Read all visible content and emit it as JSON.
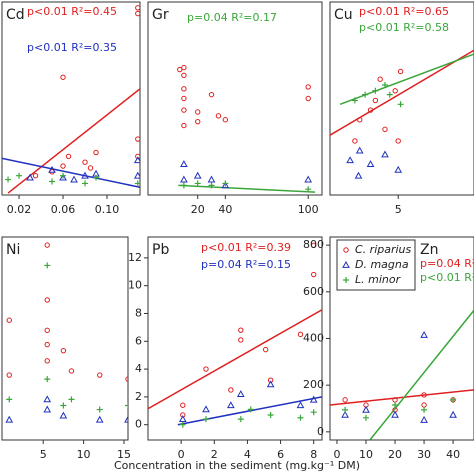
{
  "chart_data": [
    {
      "type": "scatter",
      "title": "Cd",
      "xlim": [
        0.0045,
        0.13
      ],
      "ylim": [
        0,
        1
      ],
      "xticks": [
        0.02,
        0.06,
        {
          "value": 0.1,
          "label": "0.10"
        }
      ],
      "series": [
        {
          "color": "#e02020",
          "marker": "circle",
          "x": [
            0.06,
            0.128,
            0.128,
            0.05,
            0.06,
            0.065,
            0.08,
            0.085,
            0.09,
            0.128,
            0.128,
            0.035
          ],
          "values": [
            0.61,
            0.97,
            0.94,
            0.12,
            0.15,
            0.2,
            0.17,
            0.14,
            0.22,
            0.29,
            0.2,
            0.1
          ]
        },
        {
          "color": "#2030c0",
          "marker": "triangle",
          "x": [
            0.05,
            0.06,
            0.08,
            0.09,
            0.128,
            0.128,
            0.03,
            0.07
          ],
          "values": [
            0.13,
            0.09,
            0.1,
            0.11,
            0.18,
            0.1,
            0.09,
            0.08
          ]
        },
        {
          "color": "#3aa63a",
          "marker": "plus",
          "x": [
            0.01,
            0.05,
            0.06,
            0.08,
            0.09,
            0.128,
            0.02
          ],
          "values": [
            0.08,
            0.07,
            0.1,
            0.06,
            0.09,
            0.06,
            0.1
          ]
        }
      ],
      "fit_lines": [
        {
          "color": "#e02020",
          "x": [
            0.01,
            0.13
          ],
          "y": [
            0.01,
            0.55
          ]
        },
        {
          "color": "#2030c0",
          "x": [
            0.0045,
            0.13
          ],
          "y": [
            0.19,
            0.04
          ]
        }
      ],
      "annotations": [
        {
          "text": "p<0.01  R²=0.45",
          "color": "#e02020"
        },
        {
          "text": "p<0.01  R²=0.35",
          "color": "#2030c0"
        }
      ]
    },
    {
      "type": "scatter",
      "title": "Gr",
      "xlim": [
        -16,
        110
      ],
      "ylim": [
        0,
        1
      ],
      "xticks": [
        20,
        40,
        100
      ],
      "series": [
        {
          "color": "#e02020",
          "marker": "circle",
          "x": [
            10,
            10,
            10,
            10,
            10,
            10,
            20,
            20,
            30,
            35,
            40,
            100,
            100,
            7
          ],
          "values": [
            0.66,
            0.62,
            0.55,
            0.5,
            0.44,
            0.36,
            0.43,
            0.38,
            0.52,
            0.41,
            0.39,
            0.56,
            0.5,
            0.65
          ]
        },
        {
          "color": "#2030c0",
          "marker": "triangle",
          "x": [
            10,
            10,
            20,
            30,
            40,
            100
          ],
          "values": [
            0.08,
            0.16,
            0.1,
            0.08,
            0.05,
            0.08
          ]
        },
        {
          "color": "#3aa63a",
          "marker": "plus",
          "x": [
            10,
            20,
            30,
            100,
            40
          ],
          "values": [
            0.05,
            0.06,
            0.05,
            0.03,
            0.06
          ]
        }
      ],
      "fit_lines": [
        {
          "color": "#3aa63a",
          "x": [
            6,
            105
          ],
          "y": [
            0.05,
            0.015
          ]
        }
      ],
      "annotations": [
        {
          "text": "p=0.04  R²=0.17",
          "color": "#3aa63a"
        }
      ]
    },
    {
      "type": "scatter",
      "title": "Cu",
      "xlim": [
        -0.67,
        11.3
      ],
      "ylim": [
        0,
        1
      ],
      "xticks": [
        5
      ],
      "series": [
        {
          "color": "#e02020",
          "marker": "circle",
          "x": [
            2.7,
            3.5,
            3.9,
            5.2,
            4.75,
            1.8,
            3.1,
            1.4,
            5
          ],
          "values": [
            0.44,
            0.6,
            0.34,
            0.64,
            0.54,
            0.39,
            0.49,
            0.28,
            0.28
          ]
        },
        {
          "color": "#2030c0",
          "marker": "triangle",
          "x": [
            1,
            1.8,
            2.7,
            3.9,
            5,
            1.7
          ],
          "values": [
            0.18,
            0.23,
            0.16,
            0.21,
            0.13,
            0.1
          ]
        },
        {
          "color": "#3aa63a",
          "marker": "plus",
          "x": [
            1.4,
            2.25,
            3.1,
            4.3,
            5.2,
            3.9
          ],
          "values": [
            0.49,
            0.52,
            0.54,
            0.52,
            0.47,
            0.57
          ]
        }
      ],
      "fit_lines": [
        {
          "color": "#e02020",
          "x": [
            -0.67,
            11.3
          ],
          "y": [
            0.31,
            0.75
          ]
        },
        {
          "color": "#3aa63a",
          "x": [
            0.17,
            11.3
          ],
          "y": [
            0.47,
            0.73
          ]
        }
      ],
      "annotations": [
        {
          "text": "p<0.01  R²=0.65",
          "color": "#e02020"
        },
        {
          "text": "p<0.01  R²=0.58",
          "color": "#3aa63a"
        }
      ]
    },
    {
      "type": "scatter",
      "title": "Ni",
      "xlim": [
        -0.1,
        15.5
      ],
      "ylim": [
        0,
        1
      ],
      "xticks": [
        5,
        10,
        15
      ],
      "series": [
        {
          "color": "#e02020",
          "marker": "circle",
          "x": [
            0.8,
            0.8,
            5.5,
            5.5,
            5.5,
            5.5,
            5.5,
            7.5,
            8.5,
            12,
            15.5
          ],
          "values": [
            0.59,
            0.32,
            0.96,
            0.69,
            0.54,
            0.47,
            0.39,
            0.44,
            0.34,
            0.32,
            0.3
          ]
        },
        {
          "color": "#2030c0",
          "marker": "triangle",
          "x": [
            0.8,
            5.5,
            5.5,
            7.5,
            12,
            15.5
          ],
          "values": [
            0.1,
            0.2,
            0.15,
            0.12,
            0.1,
            0.1
          ]
        },
        {
          "color": "#3aa63a",
          "marker": "plus",
          "x": [
            0.8,
            5.5,
            5.5,
            7.5,
            8.5,
            12,
            15.5
          ],
          "values": [
            0.2,
            0.86,
            0.3,
            0.17,
            0.2,
            0.15,
            0.17
          ]
        }
      ],
      "fit_lines": [],
      "annotations": []
    },
    {
      "type": "scatter",
      "title": "Pb",
      "xlim": [
        -2,
        8.5
      ],
      "ylim": [
        -1.1,
        13.5
      ],
      "xticks": [
        0,
        2,
        4,
        6,
        8
      ],
      "yticks": [
        0,
        2,
        4,
        6,
        8,
        10,
        12
      ],
      "series": [
        {
          "color": "#e02020",
          "marker": "circle",
          "x": [
            0.1,
            0.1,
            1.5,
            3.6,
            3.6,
            5.1,
            7.2,
            8,
            8,
            5.4,
            3
          ],
          "values": [
            0.7,
            1.4,
            4,
            6.8,
            6.1,
            5.4,
            6.5,
            12.9,
            10.8,
            3.2,
            2.5
          ]
        },
        {
          "color": "#2030c0",
          "marker": "triangle",
          "x": [
            0.1,
            1.5,
            3.6,
            5.4,
            7.2,
            8,
            3
          ],
          "values": [
            0.4,
            1.1,
            2.2,
            2.9,
            1.4,
            1.8,
            1.4
          ]
        },
        {
          "color": "#3aa63a",
          "marker": "plus",
          "x": [
            0.1,
            1.5,
            3.6,
            5.4,
            7.2,
            8,
            4.2
          ],
          "values": [
            0,
            0.4,
            0.4,
            0.7,
            0.5,
            0.9,
            1.1
          ]
        }
      ],
      "fit_lines": [
        {
          "color": "#e02020",
          "x": [
            -2,
            8.5
          ],
          "y": [
            1.15,
            8.27
          ]
        },
        {
          "color": "#2030c0",
          "x": [
            -0.2,
            8.5
          ],
          "y": [
            0,
            2
          ]
        }
      ],
      "annotations": [
        {
          "text": "p<0.01  R²=0.39",
          "color": "#e02020"
        },
        {
          "text": "p=0.04  R²=0.15",
          "color": "#2030c0"
        }
      ]
    },
    {
      "type": "scatter",
      "title": "Zn",
      "xlim": [
        -2.4,
        47.2
      ],
      "ylim": [
        -35,
        835
      ],
      "xticks": [
        0,
        10,
        20,
        30,
        40
      ],
      "yticks": [
        0,
        200,
        400,
        600,
        800
      ],
      "legend": "top-left",
      "series": [
        {
          "name": "C. riparius",
          "color": "#e02020",
          "marker": "circle",
          "x": [
            2.8,
            10,
            20,
            20,
            30,
            40,
            30
          ],
          "values": [
            137,
            115,
            137,
            94,
            115,
            137,
            158
          ]
        },
        {
          "name": "D. magna",
          "color": "#2030c0",
          "marker": "triangle",
          "x": [
            2.8,
            10,
            20,
            30,
            30,
            40
          ],
          "values": [
            73,
            94,
            73,
            415,
            51,
            73
          ]
        },
        {
          "name": "L. minor",
          "color": "#3aa63a",
          "marker": "plus",
          "x": [
            2.8,
            10,
            20,
            30,
            40
          ],
          "values": [
            94,
            60,
            115,
            94,
            137
          ]
        }
      ],
      "fit_lines": [
        {
          "color": "#e02020",
          "x": [
            -2.4,
            47.2
          ],
          "y": [
            115,
            180
          ]
        },
        {
          "color": "#3aa63a",
          "x": [
            11.4,
            47.2
          ],
          "y": [
            -34,
            521
          ]
        }
      ],
      "annotations": [
        {
          "text": "p=0.04  R²=0",
          "color": "#e02020"
        },
        {
          "text": "p<0.01  R²=0",
          "color": "#3aa63a"
        }
      ]
    }
  ],
  "shared_xlabel": "Concentration in the sediment (mg.kg⁻¹ DM)"
}
